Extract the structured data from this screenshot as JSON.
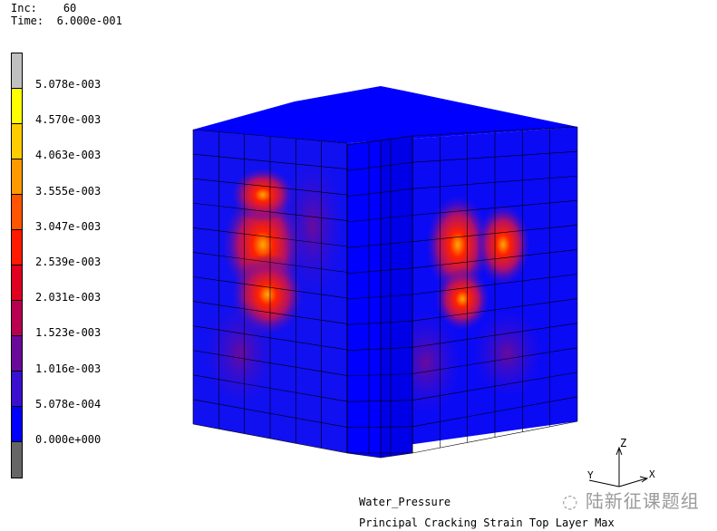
{
  "header": {
    "inc_label": "Inc:",
    "inc_value": "60",
    "time_label": "Time:",
    "time_value": "6.000e-001"
  },
  "legend": {
    "colors": [
      "#c0c0c0",
      "#ffff00",
      "#ffcc00",
      "#ff9900",
      "#ff5500",
      "#ff1a00",
      "#e00020",
      "#b80050",
      "#6a0a9a",
      "#3a10d0",
      "#0000ff",
      "#666666"
    ],
    "labels": [
      "5.078e-003",
      "4.570e-003",
      "4.063e-003",
      "3.555e-003",
      "3.047e-003",
      "2.539e-003",
      "2.031e-003",
      "1.523e-003",
      "1.016e-003",
      "5.078e-004",
      "0.000e+000"
    ]
  },
  "footer": {
    "load_case": "Water_Pressure",
    "result_label": "Principal Cracking Strain Top Layer Max"
  },
  "axes": {
    "z": "Z",
    "y": "Y",
    "x": "X"
  },
  "watermark": "陆新征课题组"
}
